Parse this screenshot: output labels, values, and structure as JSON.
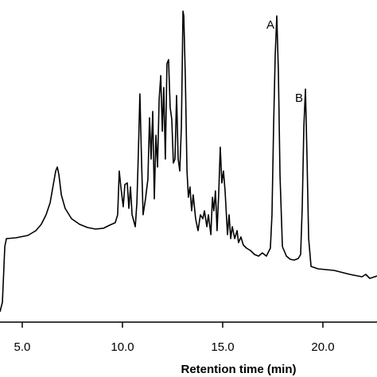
{
  "chart_data": {
    "type": "line",
    "xlabel": "Retention time (min)",
    "color": "#000000",
    "xlim": [
      3.89,
      22.7
    ],
    "ylim": [
      0,
      400
    ],
    "xticks": [
      {
        "value": 5,
        "label": "5.0"
      },
      {
        "value": 10,
        "label": "10.0"
      },
      {
        "value": 15,
        "label": "15.0"
      },
      {
        "value": 20,
        "label": "20.0"
      }
    ],
    "annotations": [
      {
        "text": "A",
        "x": 17.7
      },
      {
        "text": "B",
        "x": 19.13
      }
    ],
    "x": [
      3.89,
      4.01,
      4.13,
      4.21,
      4.68,
      5.28,
      5.68,
      5.95,
      6.19,
      6.39,
      6.55,
      6.67,
      6.75,
      6.83,
      6.95,
      7.14,
      7.46,
      7.86,
      8.25,
      8.65,
      9.05,
      9.37,
      9.64,
      9.76,
      9.84,
      9.92,
      10.04,
      10.12,
      10.24,
      10.32,
      10.4,
      10.48,
      10.64,
      10.72,
      10.79,
      10.87,
      10.95,
      11.03,
      11.15,
      11.27,
      11.35,
      11.43,
      11.51,
      11.59,
      11.67,
      11.75,
      11.83,
      11.91,
      11.99,
      12.06,
      12.14,
      12.22,
      12.3,
      12.38,
      12.46,
      12.54,
      12.62,
      12.7,
      12.78,
      12.86,
      12.94,
      13.02,
      13.06,
      13.14,
      13.22,
      13.29,
      13.37,
      13.45,
      13.53,
      13.65,
      13.77,
      13.89,
      14.01,
      14.09,
      14.21,
      14.29,
      14.41,
      14.49,
      14.56,
      14.64,
      14.72,
      14.8,
      14.88,
      14.96,
      15.04,
      15.12,
      15.24,
      15.32,
      15.4,
      15.48,
      15.6,
      15.72,
      15.79,
      15.91,
      16.03,
      16.19,
      16.39,
      16.59,
      16.79,
      16.98,
      17.18,
      17.38,
      17.46,
      17.54,
      17.62,
      17.7,
      17.78,
      17.86,
      17.98,
      18.18,
      18.37,
      18.57,
      18.77,
      18.89,
      18.97,
      19.05,
      19.13,
      19.21,
      19.29,
      19.41,
      19.76,
      20.56,
      21.35,
      21.95,
      22.14,
      22.34,
      22.7
    ],
    "values": [
      13,
      25,
      95,
      105,
      106,
      109,
      115,
      123,
      135,
      150,
      173,
      190,
      195,
      185,
      160,
      143,
      130,
      123,
      119,
      117,
      118,
      122,
      125,
      135,
      190,
      170,
      145,
      173,
      175,
      143,
      170,
      135,
      120,
      150,
      210,
      287,
      205,
      135,
      155,
      180,
      257,
      205,
      265,
      155,
      235,
      195,
      280,
      310,
      240,
      295,
      205,
      325,
      330,
      270,
      255,
      200,
      205,
      285,
      205,
      190,
      245,
      391,
      385,
      305,
      190,
      157,
      170,
      140,
      160,
      130,
      115,
      135,
      130,
      140,
      120,
      135,
      110,
      157,
      140,
      165,
      115,
      160,
      220,
      175,
      190,
      165,
      110,
      135,
      105,
      120,
      105,
      115,
      100,
      107,
      97,
      93,
      90,
      85,
      83,
      87,
      83,
      93,
      135,
      245,
      335,
      385,
      315,
      185,
      95,
      83,
      79,
      78,
      80,
      85,
      145,
      245,
      293,
      205,
      105,
      70,
      67,
      65,
      60,
      57,
      60,
      55,
      58
    ]
  }
}
